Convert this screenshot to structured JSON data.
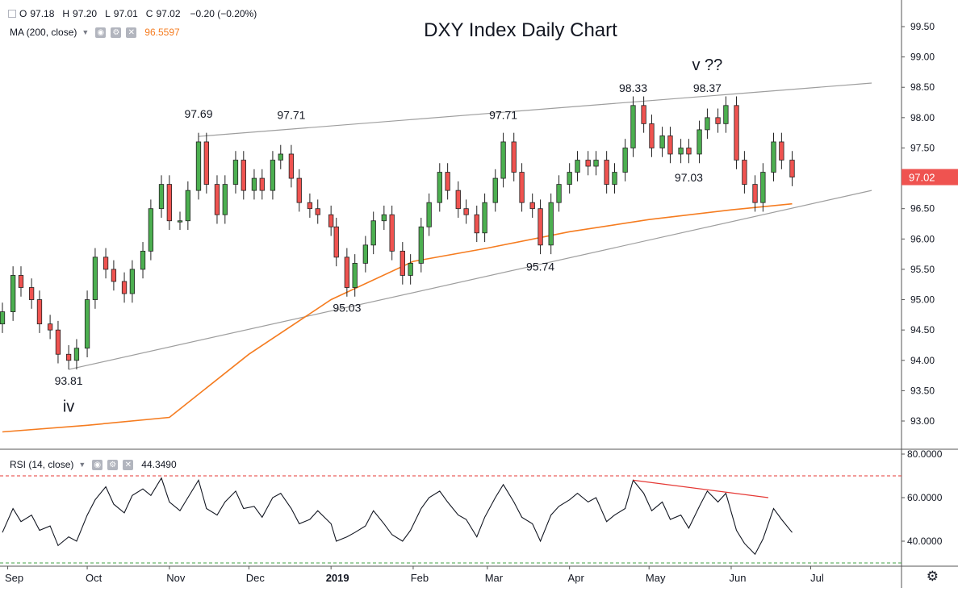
{
  "ohlc": {
    "o_label": "O",
    "o": "97.18",
    "h_label": "H",
    "h": "97.20",
    "l_label": "L",
    "l": "97.01",
    "c_label": "C",
    "c": "97.02",
    "change": "−0.20 (−0.20%)"
  },
  "ma_legend": {
    "label": "MA (200, close)",
    "value": "96.5597"
  },
  "rsi_legend": {
    "label": "RSI (14, close)",
    "value": "44.3490"
  },
  "colors": {
    "up": "#4caf50",
    "down": "#ef5350",
    "ma": "#f57c20",
    "rsi": "#131722",
    "trend": "#9e9e9e",
    "price_tag": "#ef5350",
    "rsi_upper": "#e53935",
    "rsi_lower": "#43a047"
  },
  "chart_data": [
    {
      "type": "candlestick",
      "title": "DXY Index Daily Chart",
      "ylim": [
        92.6,
        99.9
      ],
      "y_ticks": [
        "99.50",
        "99.00",
        "98.50",
        "98.00",
        "97.50",
        "97.00",
        "96.50",
        "96.00",
        "95.50",
        "95.00",
        "94.50",
        "94.00",
        "93.50",
        "93.00"
      ],
      "x_ticks": [
        "Sep",
        "Oct",
        "Nov",
        "Dec",
        "2019",
        "Feb",
        "Mar",
        "Apr",
        "May",
        "Jun",
        "Jul"
      ],
      "x_tick_dates": [
        "2018-09-01",
        "2018-10-01",
        "2018-11-01",
        "2018-12-01",
        "2019-01-01",
        "2019-02-01",
        "2019-03-01",
        "2019-04-01",
        "2019-05-01",
        "2019-06-01",
        "2019-07-01"
      ],
      "x_range": [
        "2018-08-30",
        "2019-07-24"
      ],
      "last_price": "97.02",
      "closes": [
        [
          "2018-08-30",
          94.8
        ],
        [
          "2018-09-03",
          95.4
        ],
        [
          "2018-09-06",
          95.2
        ],
        [
          "2018-09-10",
          95.0
        ],
        [
          "2018-09-13",
          94.6
        ],
        [
          "2018-09-17",
          94.5
        ],
        [
          "2018-09-20",
          94.1
        ],
        [
          "2018-09-24",
          94.0
        ],
        [
          "2018-09-27",
          94.2
        ],
        [
          "2018-10-01",
          95.0
        ],
        [
          "2018-10-04",
          95.7
        ],
        [
          "2018-10-08",
          95.5
        ],
        [
          "2018-10-11",
          95.3
        ],
        [
          "2018-10-15",
          95.1
        ],
        [
          "2018-10-18",
          95.5
        ],
        [
          "2018-10-22",
          95.8
        ],
        [
          "2018-10-25",
          96.5
        ],
        [
          "2018-10-29",
          96.9
        ],
        [
          "2018-11-01",
          96.3
        ],
        [
          "2018-11-05",
          96.3
        ],
        [
          "2018-11-08",
          96.8
        ],
        [
          "2018-11-12",
          97.6
        ],
        [
          "2018-11-15",
          96.9
        ],
        [
          "2018-11-19",
          96.4
        ],
        [
          "2018-11-22",
          96.9
        ],
        [
          "2018-11-26",
          97.3
        ],
        [
          "2018-11-29",
          96.8
        ],
        [
          "2018-12-03",
          97.0
        ],
        [
          "2018-12-06",
          96.8
        ],
        [
          "2018-12-10",
          97.3
        ],
        [
          "2018-12-13",
          97.4
        ],
        [
          "2018-12-17",
          97.0
        ],
        [
          "2018-12-20",
          96.6
        ],
        [
          "2018-12-24",
          96.5
        ],
        [
          "2018-12-27",
          96.4
        ],
        [
          "2019-01-01",
          96.2
        ],
        [
          "2019-01-03",
          95.7
        ],
        [
          "2019-01-07",
          95.2
        ],
        [
          "2019-01-10",
          95.6
        ],
        [
          "2019-01-14",
          95.9
        ],
        [
          "2019-01-17",
          96.3
        ],
        [
          "2019-01-21",
          96.4
        ],
        [
          "2019-01-24",
          95.8
        ],
        [
          "2019-01-28",
          95.4
        ],
        [
          "2019-01-31",
          95.6
        ],
        [
          "2019-02-04",
          96.2
        ],
        [
          "2019-02-07",
          96.6
        ],
        [
          "2019-02-11",
          97.1
        ],
        [
          "2019-02-14",
          96.8
        ],
        [
          "2019-02-18",
          96.5
        ],
        [
          "2019-02-21",
          96.4
        ],
        [
          "2019-02-25",
          96.1
        ],
        [
          "2019-02-28",
          96.6
        ],
        [
          "2019-03-04",
          97.0
        ],
        [
          "2019-03-07",
          97.6
        ],
        [
          "2019-03-11",
          97.1
        ],
        [
          "2019-03-14",
          96.6
        ],
        [
          "2019-03-18",
          96.5
        ],
        [
          "2019-03-21",
          95.9
        ],
        [
          "2019-03-25",
          96.6
        ],
        [
          "2019-03-28",
          96.9
        ],
        [
          "2019-04-01",
          97.1
        ],
        [
          "2019-04-04",
          97.3
        ],
        [
          "2019-04-08",
          97.2
        ],
        [
          "2019-04-11",
          97.3
        ],
        [
          "2019-04-15",
          96.9
        ],
        [
          "2019-04-18",
          97.1
        ],
        [
          "2019-04-22",
          97.5
        ],
        [
          "2019-04-25",
          98.2
        ],
        [
          "2019-04-29",
          97.9
        ],
        [
          "2019-05-02",
          97.5
        ],
        [
          "2019-05-06",
          97.7
        ],
        [
          "2019-05-09",
          97.4
        ],
        [
          "2019-05-13",
          97.5
        ],
        [
          "2019-05-16",
          97.4
        ],
        [
          "2019-05-20",
          97.8
        ],
        [
          "2019-05-23",
          98.0
        ],
        [
          "2019-05-27",
          97.9
        ],
        [
          "2019-05-30",
          98.2
        ],
        [
          "2019-06-03",
          97.3
        ],
        [
          "2019-06-06",
          96.9
        ],
        [
          "2019-06-10",
          96.6
        ],
        [
          "2019-06-13",
          97.1
        ],
        [
          "2019-06-17",
          97.6
        ],
        [
          "2019-06-20",
          97.3
        ],
        [
          "2019-06-24",
          97.02
        ]
      ],
      "moving_average_200": [
        [
          "2018-08-30",
          92.82
        ],
        [
          "2018-10-01",
          92.93
        ],
        [
          "2018-11-01",
          93.06
        ],
        [
          "2018-12-01",
          94.1
        ],
        [
          "2019-01-01",
          95.0
        ],
        [
          "2019-02-01",
          95.63
        ],
        [
          "2019-03-01",
          95.85
        ],
        [
          "2019-04-01",
          96.12
        ],
        [
          "2019-05-01",
          96.32
        ],
        [
          "2019-06-01",
          96.48
        ],
        [
          "2019-06-24",
          96.58
        ]
      ],
      "trendlines": [
        {
          "from": [
            "2018-09-24",
            93.85
          ],
          "to": [
            "2019-07-24",
            96.8
          ]
        },
        {
          "from": [
            "2018-11-12",
            97.69
          ],
          "to": [
            "2019-07-24",
            98.57
          ]
        }
      ],
      "annotations": [
        {
          "text": "97.69",
          "x": "2018-11-12",
          "y": 98.0
        },
        {
          "text": "97.71",
          "x": "2018-12-17",
          "y": 97.98
        },
        {
          "text": "97.71",
          "x": "2019-03-07",
          "y": 97.98
        },
        {
          "text": "98.33",
          "x": "2019-04-25",
          "y": 98.42
        },
        {
          "text": "98.37",
          "x": "2019-05-23",
          "y": 98.42
        },
        {
          "text": "v ??",
          "x": "2019-05-23",
          "y": 98.78,
          "large": true
        },
        {
          "text": "97.03",
          "x": "2019-05-16",
          "y": 96.95
        },
        {
          "text": "95.74",
          "x": "2019-03-21",
          "y": 95.48
        },
        {
          "text": "95.03",
          "x": "2019-01-07",
          "y": 94.8
        },
        {
          "text": "93.81",
          "x": "2018-09-24",
          "y": 93.6
        },
        {
          "text": "iv",
          "x": "2018-09-24",
          "y": 93.15,
          "large": true
        }
      ]
    },
    {
      "type": "line",
      "title": "RSI (14, close)",
      "ylim": [
        30.0,
        80.0
      ],
      "y_ticks": [
        "80.0000",
        "60.0000",
        "40.0000"
      ],
      "levels": {
        "upper": 70,
        "lower": 30
      },
      "values": [
        [
          "2018-08-30",
          44
        ],
        [
          "2018-09-03",
          55
        ],
        [
          "2018-09-06",
          49
        ],
        [
          "2018-09-10",
          52
        ],
        [
          "2018-09-13",
          45
        ],
        [
          "2018-09-17",
          47
        ],
        [
          "2018-09-20",
          38
        ],
        [
          "2018-09-24",
          42
        ],
        [
          "2018-09-27",
          40
        ],
        [
          "2018-10-01",
          52
        ],
        [
          "2018-10-04",
          59
        ],
        [
          "2018-10-08",
          65
        ],
        [
          "2018-10-11",
          57
        ],
        [
          "2018-10-15",
          53
        ],
        [
          "2018-10-18",
          61
        ],
        [
          "2018-10-22",
          64
        ],
        [
          "2018-10-25",
          61
        ],
        [
          "2018-10-29",
          69
        ],
        [
          "2018-11-01",
          58
        ],
        [
          "2018-11-05",
          54
        ],
        [
          "2018-11-08",
          60
        ],
        [
          "2018-11-12",
          68
        ],
        [
          "2018-11-15",
          55
        ],
        [
          "2018-11-19",
          52
        ],
        [
          "2018-11-22",
          58
        ],
        [
          "2018-11-26",
          63
        ],
        [
          "2018-11-29",
          55
        ],
        [
          "2018-12-03",
          56
        ],
        [
          "2018-12-06",
          51
        ],
        [
          "2018-12-10",
          60
        ],
        [
          "2018-12-13",
          62
        ],
        [
          "2018-12-17",
          55
        ],
        [
          "2018-12-20",
          48
        ],
        [
          "2018-12-24",
          50
        ],
        [
          "2018-12-27",
          54
        ],
        [
          "2019-01-01",
          48
        ],
        [
          "2019-01-03",
          40
        ],
        [
          "2019-01-07",
          42
        ],
        [
          "2019-01-10",
          44
        ],
        [
          "2019-01-14",
          47
        ],
        [
          "2019-01-17",
          54
        ],
        [
          "2019-01-21",
          48
        ],
        [
          "2019-01-24",
          43
        ],
        [
          "2019-01-28",
          40
        ],
        [
          "2019-01-31",
          45
        ],
        [
          "2019-02-04",
          55
        ],
        [
          "2019-02-07",
          60
        ],
        [
          "2019-02-11",
          63
        ],
        [
          "2019-02-14",
          58
        ],
        [
          "2019-02-18",
          52
        ],
        [
          "2019-02-21",
          50
        ],
        [
          "2019-02-25",
          42
        ],
        [
          "2019-02-28",
          51
        ],
        [
          "2019-03-04",
          60
        ],
        [
          "2019-03-07",
          66
        ],
        [
          "2019-03-11",
          58
        ],
        [
          "2019-03-14",
          51
        ],
        [
          "2019-03-18",
          48
        ],
        [
          "2019-03-21",
          40
        ],
        [
          "2019-03-25",
          52
        ],
        [
          "2019-03-28",
          56
        ],
        [
          "2019-04-01",
          59
        ],
        [
          "2019-04-04",
          62
        ],
        [
          "2019-04-08",
          58
        ],
        [
          "2019-04-11",
          60
        ],
        [
          "2019-04-15",
          49
        ],
        [
          "2019-04-18",
          52
        ],
        [
          "2019-04-22",
          55
        ],
        [
          "2019-04-25",
          68
        ],
        [
          "2019-04-29",
          62
        ],
        [
          "2019-05-02",
          54
        ],
        [
          "2019-05-06",
          58
        ],
        [
          "2019-05-09",
          50
        ],
        [
          "2019-05-13",
          52
        ],
        [
          "2019-05-16",
          46
        ],
        [
          "2019-05-20",
          56
        ],
        [
          "2019-05-23",
          63
        ],
        [
          "2019-05-27",
          58
        ],
        [
          "2019-05-30",
          62
        ],
        [
          "2019-06-03",
          45
        ],
        [
          "2019-06-06",
          39
        ],
        [
          "2019-06-10",
          34
        ],
        [
          "2019-06-13",
          41
        ],
        [
          "2019-06-17",
          55
        ],
        [
          "2019-06-20",
          50
        ],
        [
          "2019-06-24",
          44
        ]
      ],
      "divergence_line": {
        "from": [
          "2019-04-25",
          68
        ],
        "to": [
          "2019-06-15",
          60
        ]
      }
    }
  ]
}
